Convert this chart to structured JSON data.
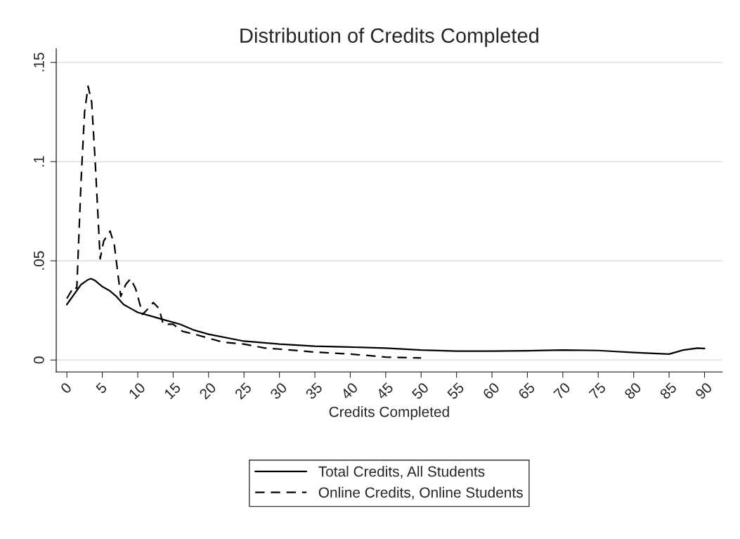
{
  "chart_data": {
    "type": "line",
    "title": "Distribution of Credits Completed",
    "xlabel": "Credits Completed",
    "xlim": [
      -1.5,
      92.5
    ],
    "ylim": [
      -0.006,
      0.157
    ],
    "xticks": [
      0,
      5,
      10,
      15,
      20,
      25,
      30,
      35,
      40,
      45,
      50,
      55,
      60,
      65,
      70,
      75,
      80,
      85,
      90
    ],
    "yticks": [
      {
        "value": 0,
        "label": "0"
      },
      {
        "value": 0.05,
        "label": ".05"
      },
      {
        "value": 0.1,
        "label": ".1"
      },
      {
        "value": 0.15,
        "label": ".15"
      }
    ],
    "grid": "y",
    "legend": "bottom",
    "series": [
      {
        "name": "Total Credits, All Students",
        "color": "#000000",
        "line_style": "solid",
        "x": [
          0,
          1,
          2,
          3,
          3.4,
          4,
          5,
          6,
          7,
          8,
          9,
          10,
          12,
          14,
          16,
          18,
          20,
          25,
          30,
          35,
          40,
          45,
          50,
          55,
          60,
          65,
          70,
          75,
          80,
          85,
          87,
          89,
          90
        ],
        "values": [
          0.028,
          0.033,
          0.038,
          0.0405,
          0.041,
          0.04,
          0.037,
          0.035,
          0.032,
          0.028,
          0.026,
          0.024,
          0.022,
          0.02,
          0.018,
          0.015,
          0.013,
          0.0095,
          0.008,
          0.007,
          0.0065,
          0.006,
          0.005,
          0.0045,
          0.0045,
          0.0047,
          0.005,
          0.0048,
          0.0038,
          0.003,
          0.005,
          0.006,
          0.0058
        ]
      },
      {
        "name": "Online Credits, Online Students",
        "color": "#000000",
        "line_style": "dashed",
        "x": [
          0,
          0.5,
          1,
          1.4,
          2,
          2.5,
          3,
          3.5,
          4,
          4.7,
          5.2,
          6.1,
          6.7,
          7.6,
          8.3,
          9,
          9.7,
          10.7,
          11.5,
          12.2,
          13,
          13.6,
          15,
          16.3,
          18,
          20,
          22,
          25,
          28,
          30,
          35,
          40,
          45,
          50
        ],
        "values": [
          0.031,
          0.034,
          0.037,
          0.036,
          0.09,
          0.125,
          0.138,
          0.13,
          0.1,
          0.051,
          0.06,
          0.065,
          0.058,
          0.032,
          0.038,
          0.041,
          0.036,
          0.023,
          0.026,
          0.029,
          0.026,
          0.018,
          0.018,
          0.0145,
          0.013,
          0.011,
          0.009,
          0.008,
          0.006,
          0.0055,
          0.004,
          0.003,
          0.0015,
          0.001
        ]
      }
    ]
  }
}
